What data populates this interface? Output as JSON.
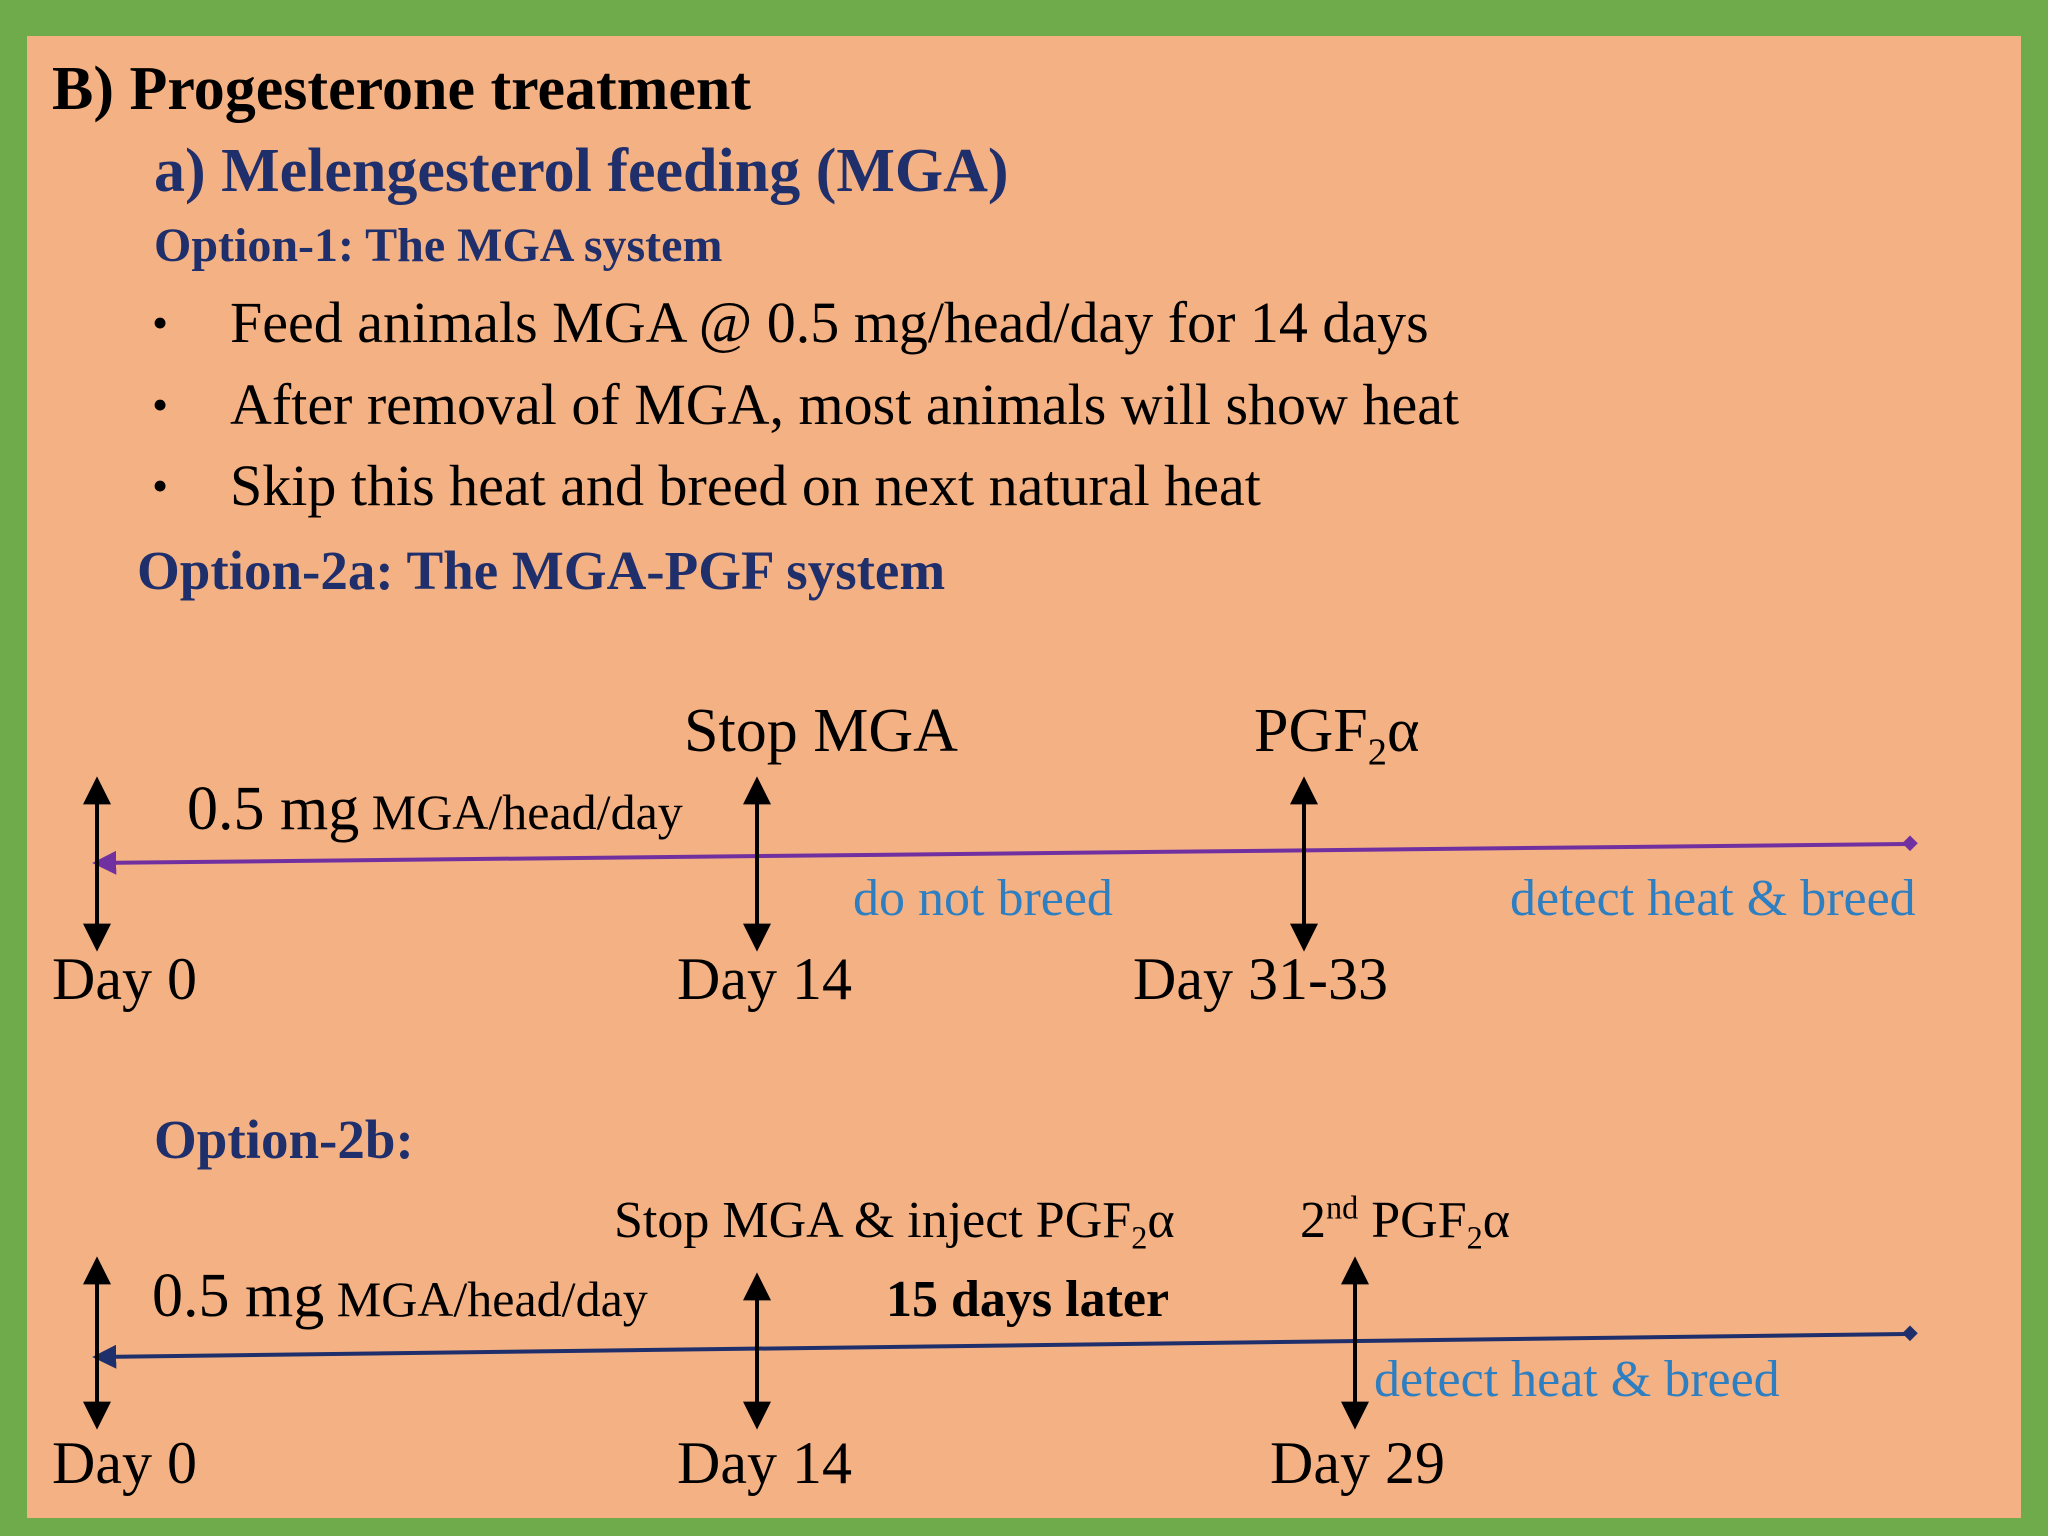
{
  "heading": "B) Progesterone treatment",
  "subheading": "a) Melengesterol feeding (MGA)",
  "option1": {
    "title": "Option-1: The MGA system",
    "bullets": [
      "Feed animals MGA @ 0.5 mg/head/day for 14 days",
      "After removal of MGA, most animals will show heat",
      "Skip this heat and breed on next natural heat"
    ]
  },
  "option2a": {
    "title": "Option-2a: The MGA-PGF system",
    "dose_num": "0.5 mg",
    "dose_unit": " MGA/head/day",
    "event_stop": "Stop MGA",
    "event_pgf_base": "PGF",
    "event_pgf_sub": "2",
    "event_pgf_tail": "α",
    "note_no_breed": "do not breed",
    "note_detect": "detect heat & breed",
    "days": [
      "Day 0",
      "Day 14",
      "Day 31-33"
    ]
  },
  "option2b": {
    "title": "Option-2b:",
    "dose_num": "0.5 mg",
    "dose_unit": " MGA/head/day",
    "event_stop_base": "Stop MGA & inject PGF",
    "event_stop_sub": "2",
    "event_stop_tail": "α",
    "event_second_num": "2",
    "event_second_sup": "nd",
    "event_second_base": " PGF",
    "event_second_sub": "2",
    "event_second_tail": "α",
    "interval": "15 days later",
    "note_detect": "detect heat & breed",
    "days": [
      "Day 0",
      "Day 14",
      "Day 29"
    ]
  },
  "colors": {
    "frame": "#6fab4a",
    "background": "#f4b183",
    "navy": "#1f2f6b",
    "timeline_a": "#7030a0",
    "timeline_b": "#1f2f6b",
    "note": "#2e7fc2"
  }
}
